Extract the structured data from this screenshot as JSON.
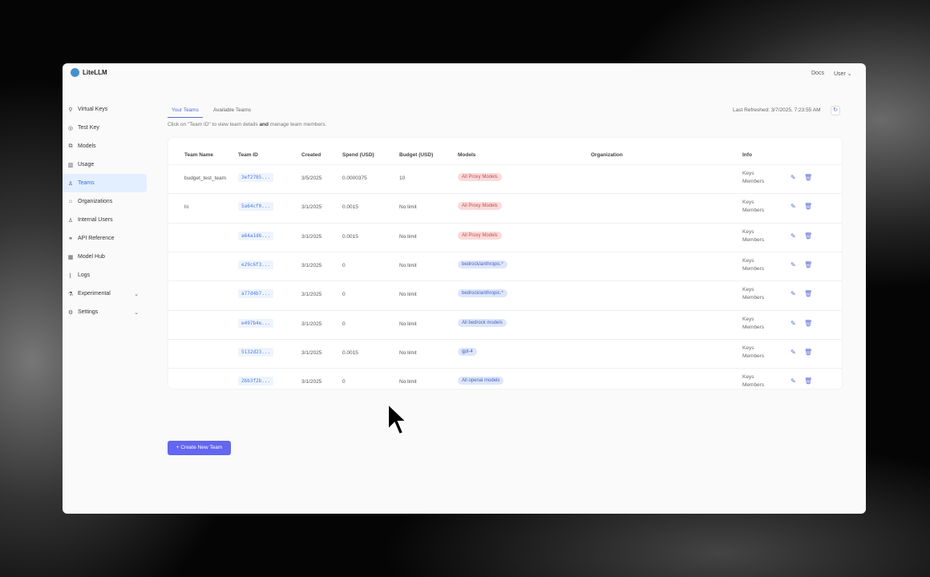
{
  "header": {
    "app_name": "LiteLLM",
    "docs": "Docs",
    "user": "User"
  },
  "sidebar": {
    "items": [
      {
        "label": "Virtual Keys",
        "icon": "key-icon",
        "glyph": "⚲"
      },
      {
        "label": "Test Key",
        "icon": "play-circle-icon",
        "glyph": "◎"
      },
      {
        "label": "Models",
        "icon": "block-icon",
        "glyph": "⧉"
      },
      {
        "label": "Usage",
        "icon": "bar-chart-icon",
        "glyph": "▥"
      },
      {
        "label": "Teams",
        "icon": "team-icon",
        "glyph": "♙",
        "active": true
      },
      {
        "label": "Organizations",
        "icon": "bank-icon",
        "glyph": "⌂"
      },
      {
        "label": "Internal Users",
        "icon": "user-icon",
        "glyph": "♙"
      },
      {
        "label": "API Reference",
        "icon": "api-icon",
        "glyph": "⚭"
      },
      {
        "label": "Model Hub",
        "icon": "app-store-icon",
        "glyph": "▦"
      },
      {
        "label": "Logs",
        "icon": "line-chart-icon",
        "glyph": "⌊"
      },
      {
        "label": "Experimental",
        "icon": "experiment-icon",
        "glyph": "⚗",
        "expandable": true
      },
      {
        "label": "Settings",
        "icon": "settings-icon",
        "glyph": "⚙",
        "expandable": true
      }
    ]
  },
  "tabs": [
    "Your Teams",
    "Available Teams"
  ],
  "hint_pre": "Click on \"Team ID\" to view team details ",
  "hint_bold": "and",
  "hint_post": " manage team members.",
  "last_refreshed": "Last Refreshed: 3/7/2025, 7:23:55 AM",
  "table": {
    "columns": [
      "Team Name",
      "Team ID",
      "Created",
      "Spend (USD)",
      "Budget (USD)",
      "Models",
      "Organization",
      "Info"
    ],
    "rows": [
      {
        "name": "budget_test_team",
        "id": "3ef2785...",
        "created": "3/5/2025",
        "spend": "0.0000375",
        "budget": "10",
        "model": "All Proxy Models",
        "model_color": "red",
        "info1": "Keys",
        "info2": "Members"
      },
      {
        "name": "hi",
        "id": "5a64cf0...",
        "created": "3/1/2025",
        "spend": "0.0015",
        "budget": "No limit",
        "model": "All Proxy Models",
        "model_color": "red",
        "info1": "Keys",
        "info2": "Members"
      },
      {
        "name": "",
        "id": "a64a1d6...",
        "created": "3/1/2025",
        "spend": "0.0015",
        "budget": "No limit",
        "model": "All Proxy Models",
        "model_color": "red",
        "info1": "Keys",
        "info2": "Members"
      },
      {
        "name": "",
        "id": "e29c6f3...",
        "created": "3/1/2025",
        "spend": "0",
        "budget": "No limit",
        "model": "bedrock/anthropic.*",
        "model_color": "blue",
        "info1": "Keys",
        "info2": "Members"
      },
      {
        "name": "",
        "id": "a77d4b7...",
        "created": "3/1/2025",
        "spend": "0",
        "budget": "No limit",
        "model": "bedrock/anthropic.*",
        "model_color": "blue",
        "info1": "Keys",
        "info2": "Members"
      },
      {
        "name": "",
        "id": "e497b4e...",
        "created": "3/1/2025",
        "spend": "0",
        "budget": "No limit",
        "model": "All bedrock models",
        "model_color": "blue",
        "info1": "Keys",
        "info2": "Members"
      },
      {
        "name": "",
        "id": "5132d23...",
        "created": "3/1/2025",
        "spend": "0.0015",
        "budget": "No limit",
        "model": "gpt-4",
        "model_color": "blue",
        "info1": "Keys",
        "info2": "Members"
      },
      {
        "name": "",
        "id": "2bb3f2b...",
        "created": "3/1/2025",
        "spend": "0",
        "budget": "No limit",
        "model": "All openai models",
        "model_color": "blue",
        "info1": "Keys",
        "info2": "Members"
      }
    ]
  },
  "create_button": "+ Create New Team"
}
